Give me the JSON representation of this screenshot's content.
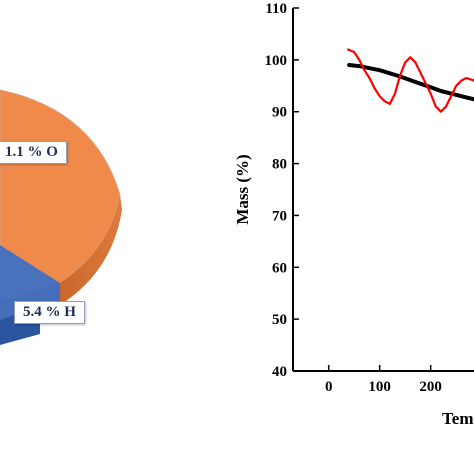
{
  "chart_data": [
    {
      "type": "pie",
      "slices": [
        {
          "label": "1.1 % O",
          "color": "#f08a4b"
        },
        {
          "label": "5.4 % H",
          "color": "#3c6fc6"
        }
      ]
    },
    {
      "type": "line",
      "ylabel": "Mass (%)",
      "xlabel": "Tem",
      "xticks": [
        "0",
        "100",
        "200"
      ],
      "yticks": [
        "40",
        "50",
        "60",
        "70",
        "80",
        "90",
        "100",
        "110"
      ],
      "xlim": [
        -70,
        285
      ],
      "ylim": [
        40,
        110
      ],
      "series": [
        {
          "color": "#000000",
          "x": [
            40,
            60,
            80,
            100,
            120,
            140,
            160,
            180,
            200,
            220,
            240,
            260,
            285
          ],
          "y": [
            99,
            98.8,
            98.4,
            98,
            97.4,
            96.8,
            96.1,
            95.4,
            94.7,
            94,
            93.5,
            93,
            92.4
          ]
        },
        {
          "color": "#ff0000",
          "x": [
            38,
            50,
            60,
            70,
            80,
            90,
            100,
            110,
            120,
            130,
            140,
            150,
            160,
            170,
            180,
            190,
            200,
            210,
            220,
            230,
            240,
            250,
            260,
            270,
            285
          ],
          "y": [
            102,
            101.5,
            100,
            98,
            96.5,
            94.5,
            93,
            92,
            91.5,
            93.5,
            97,
            99.5,
            100.5,
            99.5,
            97.5,
            95.5,
            93.5,
            91,
            90,
            91,
            93,
            95,
            96,
            96.5,
            96
          ]
        }
      ]
    }
  ]
}
